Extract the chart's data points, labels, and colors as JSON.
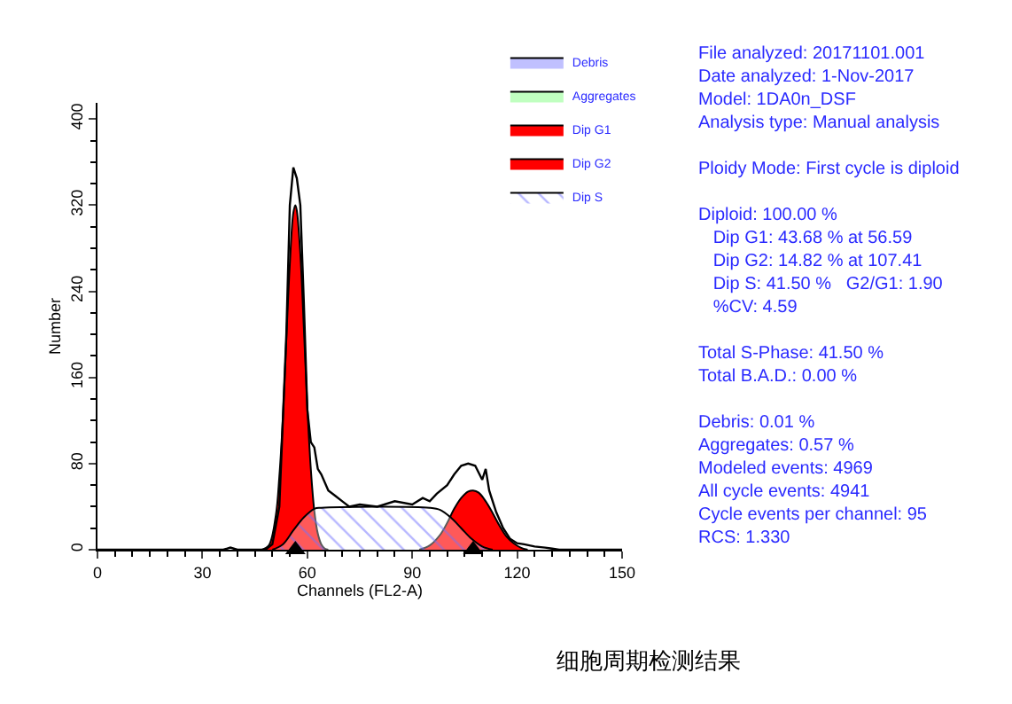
{
  "chart_data": {
    "type": "area",
    "title": "细胞周期检测结果",
    "xlabel": "Channels (FL2-A)",
    "ylabel": "Number",
    "xlim": [
      0,
      150
    ],
    "xticks": [
      0,
      30,
      60,
      90,
      120,
      150
    ],
    "ylim": [
      0,
      415
    ],
    "yticks": [
      0,
      80,
      160,
      240,
      320,
      400
    ],
    "legend": "top right",
    "annotations": [
      "File analyzed: 20171101.001\nDate analyzed: 1-Nov-2017\nModel: 1DA0n_DSF\nAnalysis type: Manual analysis\n\nPloidy Mode: First cycle is diploid\n\nDiploid: 100.00 %\n   Dip G1: 43.68 % at 56.59\n   Dip G2: 14.82 % at 107.41\n   Dip S: 41.50 %   G2/G1: 1.90\n   %CV: 4.59\n\nTotal S-Phase: 41.50 %\nTotal B.A.D.: 0.00 %\n\nDebris: 0.01 %\nAggregates: 0.57 %\nModeled events: 4969\nAll cycle events: 4941\nCycle events per channel: 95\nRCS: 1.330"
    ],
    "series": [
      {
        "name": "Debris",
        "color": "#c0c0ff"
      },
      {
        "name": "Aggregates",
        "color": "#c0ffc0"
      },
      {
        "name": "Dip G1",
        "color": "#ff0000",
        "x": [
          47,
          49,
          51,
          52,
          53,
          54,
          55,
          56,
          56.59,
          57,
          58,
          59,
          60,
          61,
          62,
          63,
          64,
          65,
          66
        ],
        "values": [
          0,
          4,
          32,
          68,
          122,
          196,
          265,
          313,
          320,
          315,
          275,
          206,
          133,
          75,
          36,
          15,
          5,
          1,
          0
        ]
      },
      {
        "name": "Dip G2",
        "color": "#ff0000",
        "x": [
          92,
          95,
          98,
          100,
          102,
          104,
          106,
          107.41,
          109,
          111,
          113,
          115,
          117,
          119,
          121,
          123
        ],
        "values": [
          0,
          4,
          14,
          25,
          38,
          48,
          54,
          55,
          53,
          45,
          34,
          22,
          12,
          6,
          2,
          0
        ]
      },
      {
        "name": "Dip S",
        "color": "#7070ff",
        "x": [
          50,
          53,
          56,
          59,
          62,
          64,
          95,
          98,
          101,
          104,
          107,
          110,
          113
        ],
        "values": [
          0,
          5,
          18,
          30,
          38,
          39,
          39,
          37,
          30,
          20,
          10,
          3,
          0
        ]
      },
      {
        "type": "line",
        "color": "#000000",
        "x": [
          0,
          36,
          38,
          40,
          48,
          50,
          52,
          54,
          55,
          56,
          57,
          58,
          59,
          60,
          61,
          62,
          63,
          64,
          66,
          68,
          70,
          72,
          75,
          80,
          85,
          90,
          93,
          95,
          97,
          100,
          102,
          104,
          106,
          108,
          110,
          111,
          112,
          114,
          116,
          118,
          120,
          122,
          125,
          128,
          130,
          132,
          150
        ],
        "values": [
          0,
          0,
          2,
          0,
          0,
          5,
          40,
          200,
          320,
          355,
          345,
          320,
          230,
          130,
          100,
          95,
          75,
          70,
          55,
          50,
          45,
          40,
          42,
          40,
          45,
          42,
          48,
          45,
          52,
          60,
          70,
          78,
          80,
          78,
          65,
          75,
          55,
          35,
          20,
          10,
          6,
          5,
          3,
          2,
          1,
          0,
          0
        ]
      },
      {
        "type": "scatter",
        "color": "#000000",
        "marker": "triangle",
        "x": [
          56.59,
          107.41
        ],
        "values": [
          0,
          0
        ]
      }
    ]
  }
}
